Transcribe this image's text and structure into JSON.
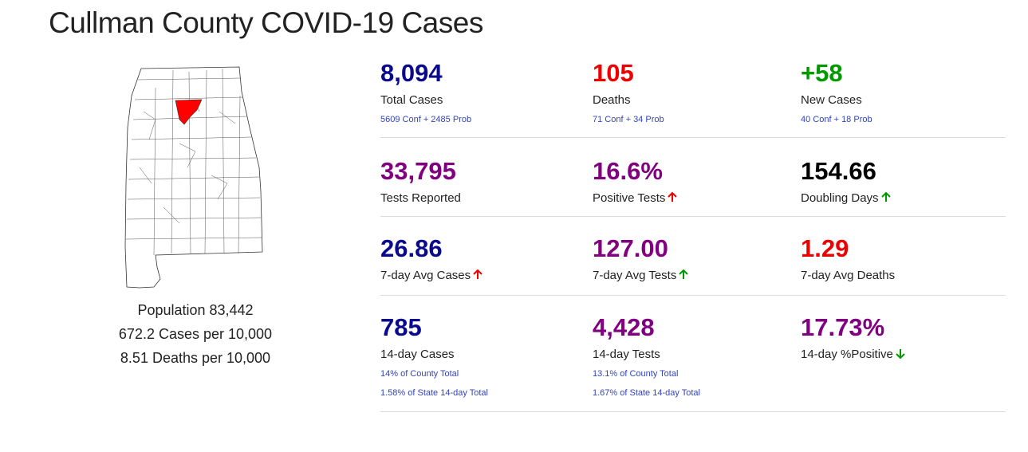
{
  "page": {
    "title": "Cullman County COVID-19 Cases"
  },
  "population": {
    "population": "Population 83,442",
    "cases_per_10k": "672.2 Cases per 10,000",
    "deaths_per_10k": "8.51 Deaths per 10,000"
  },
  "colors": {
    "navy": "#0a0a8c",
    "red": "#ee0000",
    "green": "#009900",
    "purple": "#800080",
    "black": "#000000",
    "highlight_county": "#ff0000"
  },
  "stats": {
    "total_cases": {
      "value": "8,094",
      "label": "Total Cases",
      "sub": "5609 Conf + 2485 Prob"
    },
    "deaths": {
      "value": "105",
      "label": "Deaths",
      "sub": "71 Conf + 34 Prob"
    },
    "new_cases": {
      "value": "+58",
      "label": "New Cases",
      "sub": "40 Conf + 18 Prob"
    },
    "tests_reported": {
      "value": "33,795",
      "label": "Tests Reported"
    },
    "positive_tests": {
      "value": "16.6%",
      "label": "Positive Tests",
      "trend": "up",
      "trend_color": "red"
    },
    "doubling_days": {
      "value": "154.66",
      "label": "Doubling Days",
      "trend": "up",
      "trend_color": "green"
    },
    "avg_cases_7d": {
      "value": "26.86",
      "label": "7-day Avg Cases",
      "trend": "up",
      "trend_color": "red"
    },
    "avg_tests_7d": {
      "value": "127.00",
      "label": "7-day Avg Tests",
      "trend": "up",
      "trend_color": "green"
    },
    "avg_deaths_7d": {
      "value": "1.29",
      "label": "7-day Avg Deaths"
    },
    "cases_14d": {
      "value": "785",
      "label": "14-day Cases",
      "sub1": "14% of County Total",
      "sub2": "1.58% of State 14-day Total"
    },
    "tests_14d": {
      "value": "4,428",
      "label": "14-day Tests",
      "sub1": "13.1% of County Total",
      "sub2": "1.67% of State 14-day Total"
    },
    "positive_14d": {
      "value": "17.73%",
      "label": "14-day %Positive",
      "trend": "down",
      "trend_color": "green"
    }
  }
}
